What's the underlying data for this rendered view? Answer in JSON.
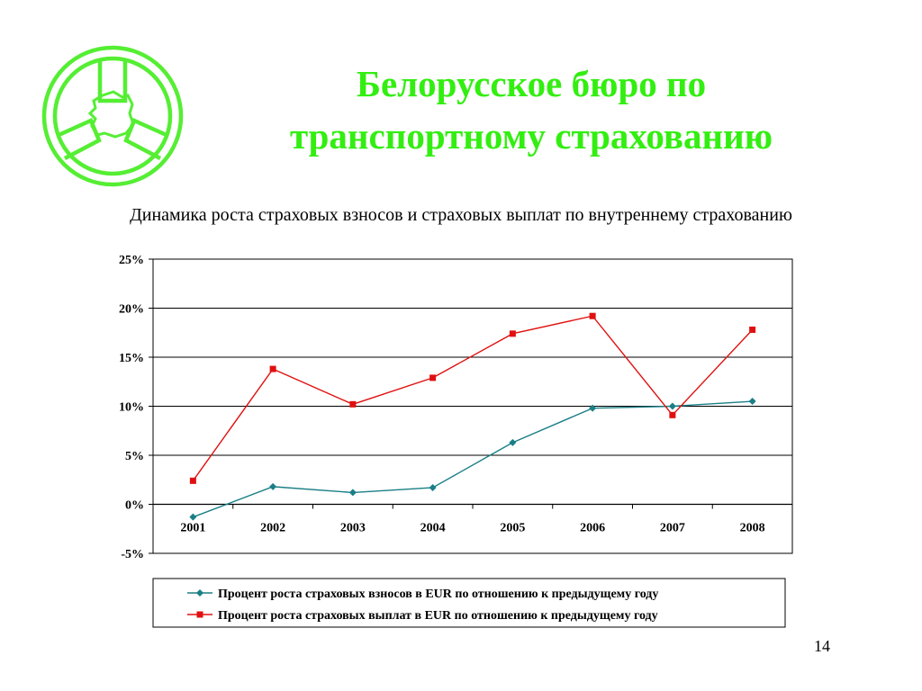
{
  "slide": {
    "title_line1": "Белорусское бюро по",
    "title_line2": "транспортному страхованию",
    "subtitle": "Динамика роста страховых взносов и страховых выплат по внутреннему страхованию",
    "page_number": "14",
    "logo": "belarus-wheel-logo"
  },
  "colors": {
    "title": "#33ee11",
    "logo": "#55ee33",
    "series1": "#1a7f86",
    "series2": "#e01010"
  },
  "chart_data": {
    "type": "line",
    "categories": [
      "2001",
      "2002",
      "2003",
      "2004",
      "2005",
      "2006",
      "2007",
      "2008"
    ],
    "ylim": [
      -5,
      25
    ],
    "yticks": [
      25,
      20,
      15,
      10,
      5,
      0,
      -5
    ],
    "ytick_labels": [
      "25%",
      "20%",
      "15%",
      "10%",
      "5%",
      "0%",
      "-5%"
    ],
    "grid": true,
    "legend_position": "bottom",
    "series": [
      {
        "name": "Процент роста страховых взносов в EUR по отношению к предыдущему году",
        "marker": "diamond",
        "values": [
          -1.3,
          1.8,
          1.2,
          1.7,
          6.3,
          9.8,
          10.0,
          10.5
        ]
      },
      {
        "name": "Процент роста страховых выплат в EUR по отношению к предыдущему году",
        "marker": "square",
        "values": [
          2.4,
          13.8,
          10.2,
          12.9,
          17.4,
          19.2,
          9.1,
          17.8
        ]
      }
    ]
  }
}
